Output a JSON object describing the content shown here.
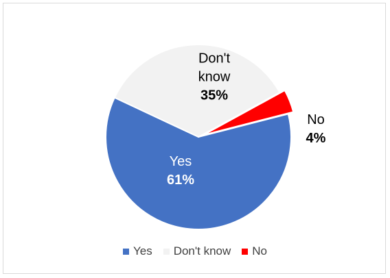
{
  "chart_data": {
    "type": "pie",
    "categories": [
      "Yes",
      "Don't know",
      "No"
    ],
    "values": [
      61,
      35,
      4
    ],
    "data_labels": [
      {
        "name": [
          "Yes"
        ],
        "pct": "61%"
      },
      {
        "name": [
          "Don't",
          "know"
        ],
        "pct": "35%"
      },
      {
        "name": [
          "No"
        ],
        "pct": "4%"
      }
    ],
    "colors": [
      "#4472c4",
      "#f2f2f2",
      "#ff0000"
    ],
    "label_colors": [
      "#ffffff",
      "#000000",
      "#000000"
    ],
    "legend": {
      "placement": "bottom",
      "entries": [
        "Yes",
        "Don't know",
        "No"
      ]
    },
    "exploded_slice": "No"
  }
}
